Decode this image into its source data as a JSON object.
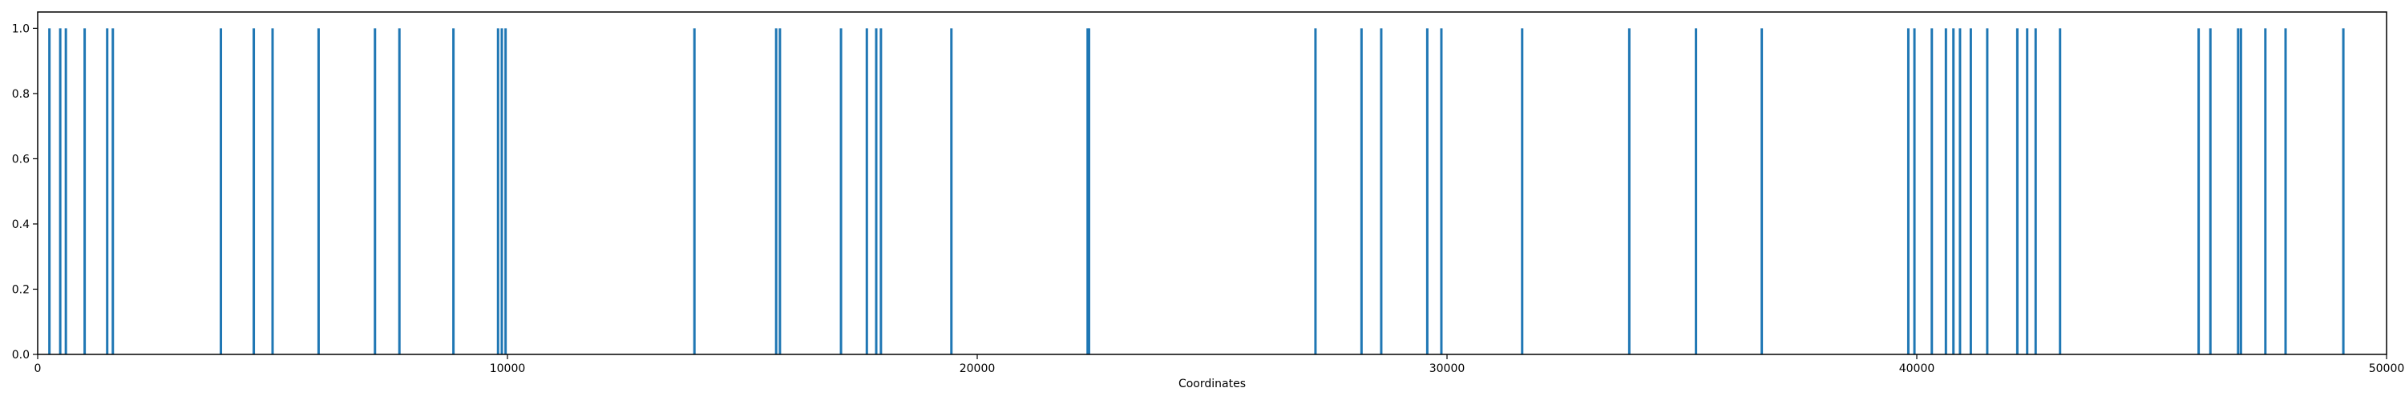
{
  "chart_data": {
    "type": "bar",
    "title": "",
    "xlabel": "Coordinates",
    "ylabel": "",
    "xlim": [
      0,
      50000
    ],
    "ylim": [
      0,
      1.05
    ],
    "grid": false,
    "color": "#1f77b4",
    "x_ticks": [
      0,
      10000,
      20000,
      30000,
      40000,
      50000
    ],
    "x_tick_labels": [
      "0",
      "10000",
      "20000",
      "30000",
      "40000",
      "50000"
    ],
    "y_ticks": [
      0.0,
      0.2,
      0.4,
      0.6,
      0.8,
      1.0
    ],
    "y_tick_labels": [
      "0.0",
      "0.2",
      "0.4",
      "0.6",
      "0.8",
      "1.0"
    ],
    "x": [
      250,
      480,
      600,
      1000,
      1480,
      1600,
      3900,
      4600,
      5000,
      5980,
      7180,
      7700,
      8850,
      9800,
      9880,
      9960,
      13980,
      15720,
      15800,
      17100,
      17650,
      17850,
      17950,
      19450,
      22350,
      22380,
      27200,
      28180,
      28600,
      29580,
      29880,
      31600,
      33880,
      35300,
      36700,
      39820,
      39950,
      40320,
      40620,
      40780,
      40920,
      41150,
      41500,
      42140,
      42350,
      42530,
      43050,
      46000,
      46250,
      46840,
      46900,
      47420,
      47850,
      49080
    ],
    "values": [
      1,
      1,
      1,
      1,
      1,
      1,
      1,
      1,
      1,
      1,
      1,
      1,
      1,
      1,
      1,
      1,
      1,
      1,
      1,
      1,
      1,
      1,
      1,
      1,
      1,
      1,
      1,
      1,
      1,
      1,
      1,
      1,
      1,
      1,
      1,
      1,
      1,
      1,
      1,
      1,
      1,
      1,
      1,
      1,
      1,
      1,
      1,
      1,
      1,
      1,
      1,
      1,
      1,
      1
    ]
  }
}
